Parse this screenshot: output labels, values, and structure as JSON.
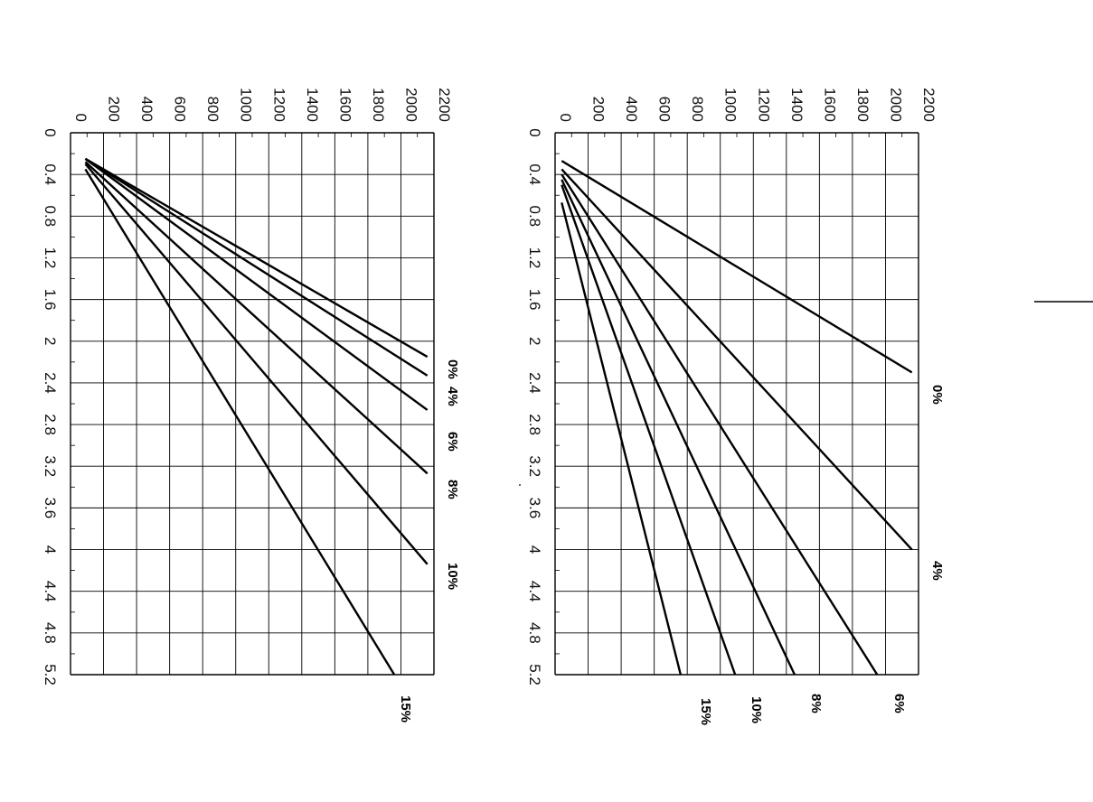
{
  "chart_data": [
    {
      "type": "line",
      "orientation": "rotated 90 degrees clockwise",
      "x_ticks": [
        "0",
        "0.4",
        "0.8",
        "1.2",
        "1.6",
        "2",
        "2.4",
        "2.8",
        "3.2",
        "3.6",
        "4",
        "4.4",
        "4.8",
        "5.2"
      ],
      "y_ticks": [
        "0",
        "200",
        "400",
        "600",
        "800",
        "1000",
        "1200",
        "1400",
        "1600",
        "1800",
        "2000",
        "2200"
      ],
      "xlim": [
        0,
        5.2
      ],
      "ylim": [
        0,
        2200
      ],
      "grid": true,
      "series": [
        {
          "name": "0%",
          "x": [
            0.25,
            2.15
          ],
          "y": [
            90,
            2160
          ]
        },
        {
          "name": "4%",
          "x": [
            0.25,
            2.33
          ],
          "y": [
            90,
            2160
          ]
        },
        {
          "name": "6%",
          "x": [
            0.25,
            2.66
          ],
          "y": [
            90,
            2160
          ]
        },
        {
          "name": "8%",
          "x": [
            0.28,
            3.27
          ],
          "y": [
            90,
            2160
          ]
        },
        {
          "name": "10%",
          "x": [
            0.3,
            4.14
          ],
          "y": [
            90,
            2160
          ]
        },
        {
          "name": "15%",
          "x": [
            0.35,
            5.2
          ],
          "y": [
            90,
            1960
          ]
        }
      ]
    },
    {
      "type": "line",
      "orientation": "rotated 90 degrees clockwise",
      "x_ticks": [
        "0",
        "0.4",
        "0.8",
        "1.2",
        "1.6",
        "2",
        "2.4",
        "2.8",
        "3.2",
        "3.6",
        "4",
        "4.4",
        "4.8",
        "5.2"
      ],
      "y_ticks": [
        "0",
        "200",
        "400",
        "600",
        "800",
        "1000",
        "1200",
        "1400",
        "1600",
        "1800",
        "2000",
        "2200"
      ],
      "xlim": [
        0,
        5.2
      ],
      "ylim": [
        0,
        2200
      ],
      "grid": true,
      "series": [
        {
          "name": "0%",
          "x": [
            0.27,
            2.3
          ],
          "y": [
            40,
            2160
          ]
        },
        {
          "name": "4%",
          "x": [
            0.35,
            4.0
          ],
          "y": [
            40,
            2160
          ]
        },
        {
          "name": "6%",
          "x": [
            0.4,
            5.2
          ],
          "y": [
            40,
            1950
          ]
        },
        {
          "name": "8%",
          "x": [
            0.45,
            5.2
          ],
          "y": [
            40,
            1450
          ]
        },
        {
          "name": "10%",
          "x": [
            0.5,
            5.2
          ],
          "y": [
            40,
            1090
          ]
        },
        {
          "name": "15%",
          "x": [
            0.67,
            5.2
          ],
          "y": [
            40,
            760
          ]
        }
      ]
    }
  ]
}
